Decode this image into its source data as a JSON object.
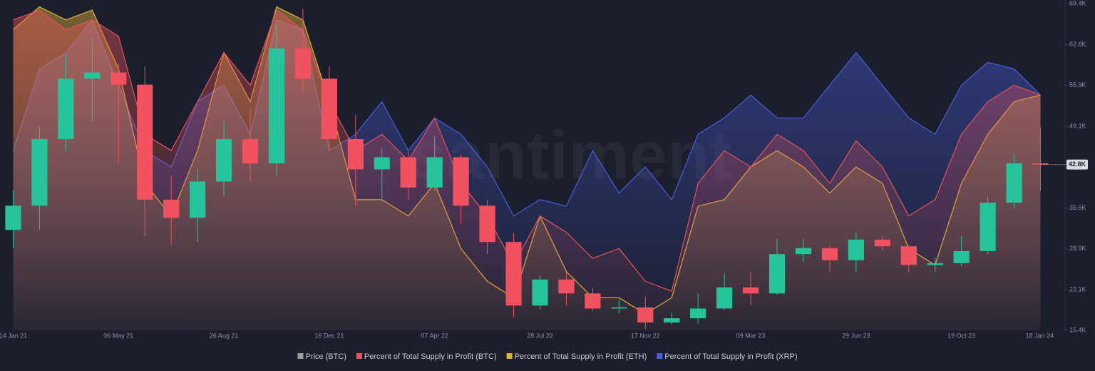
{
  "chart_data": {
    "type": "candlestick",
    "watermark": "santiment",
    "categories": [
      "14 Jan 21",
      null,
      null,
      null,
      "06 May 21",
      null,
      null,
      null,
      "26 Aug 21",
      null,
      null,
      null,
      "16 Dec 21",
      null,
      null,
      null,
      "07 Apr 22",
      null,
      null,
      null,
      "28 Jul 22",
      null,
      null,
      null,
      "17 Nov 22",
      null,
      null,
      null,
      "09 Mar 23",
      null,
      null,
      null,
      "29 Jun 23",
      null,
      null,
      null,
      "19 Oct 23",
      null,
      null,
      "18 Jan 24"
    ],
    "series": [
      {
        "name": "Price (BTC)",
        "color": "#9e9e9e",
        "up_color": "#26c49a",
        "down_color": "#f2525f",
        "open": [
          32000,
          36000,
          47000,
          57000,
          58000,
          56000,
          37000,
          34000,
          40000,
          47000,
          43000,
          62000,
          57000,
          47000,
          42000,
          44000,
          39000,
          44000,
          36000,
          30000,
          19500,
          23800,
          21500,
          19000,
          19200,
          16700,
          17400,
          19000,
          22500,
          21500,
          28000,
          29000,
          27000,
          30400,
          29300,
          26200,
          26500,
          28500,
          36500,
          43000
        ],
        "high": [
          38500,
          49000,
          61000,
          64000,
          59500,
          59000,
          41000,
          42000,
          50000,
          52000,
          66000,
          68500,
          59000,
          51000,
          45500,
          45000,
          47500,
          44500,
          37000,
          31500,
          24500,
          25000,
          22500,
          20500,
          21000,
          18300,
          21500,
          24800,
          25000,
          30500,
          30500,
          29500,
          31500,
          31000,
          29500,
          27500,
          31000,
          37500,
          44500,
          48900
        ],
        "low": [
          29000,
          32000,
          45000,
          50000,
          43000,
          31000,
          29500,
          30000,
          37500,
          40000,
          41000,
          55000,
          45000,
          36000,
          36500,
          37000,
          38500,
          33000,
          28000,
          17600,
          18800,
          19500,
          18600,
          18200,
          15600,
          16400,
          16500,
          18800,
          19600,
          21300,
          26800,
          25000,
          25000,
          28700,
          25000,
          25000,
          26000,
          28000,
          35500,
          38500
        ],
        "close": [
          36000,
          47000,
          57000,
          58000,
          56000,
          37000,
          34000,
          40000,
          47000,
          43000,
          62000,
          57000,
          47000,
          42000,
          44000,
          39000,
          44000,
          36000,
          30000,
          19500,
          23800,
          21500,
          19000,
          19200,
          16700,
          17400,
          19000,
          22500,
          21500,
          28000,
          29000,
          27000,
          30400,
          29300,
          26200,
          26500,
          28500,
          36500,
          43000,
          42800
        ]
      },
      {
        "name": "Percent of Total Supply in Profit (BTC)",
        "color": "#e6535a",
        "axis": "y2",
        "values": [
          95,
          98,
          92,
          95,
          90,
          60,
          55,
          70,
          85,
          75,
          98,
          92,
          70,
          55,
          60,
          52,
          65,
          45,
          35,
          20,
          35,
          30,
          22,
          25,
          15,
          12,
          45,
          55,
          50,
          60,
          55,
          45,
          58,
          50,
          35,
          40,
          60,
          70,
          75,
          72
        ]
      },
      {
        "name": "Percent of Total Supply in Profit (ETH)",
        "color": "#e2b33c",
        "axis": "y2",
        "values": [
          92,
          99,
          95,
          98,
          80,
          45,
          35,
          55,
          85,
          70,
          99,
          95,
          70,
          40,
          40,
          35,
          45,
          25,
          15,
          10,
          35,
          18,
          10,
          10,
          5,
          10,
          38,
          40,
          50,
          55,
          50,
          42,
          50,
          45,
          25,
          20,
          45,
          60,
          70,
          72
        ]
      },
      {
        "name": "Percent of Total Supply in Profit (XRP)",
        "color": "#4a5fe0",
        "axis": "y2",
        "values": [
          55,
          80,
          85,
          95,
          75,
          55,
          50,
          70,
          75,
          60,
          95,
          92,
          55,
          60,
          70,
          55,
          65,
          60,
          50,
          35,
          40,
          38,
          55,
          42,
          50,
          40,
          60,
          65,
          72,
          65,
          65,
          75,
          85,
          75,
          65,
          60,
          75,
          82,
          80,
          72
        ]
      }
    ],
    "ylim": [
      15400,
      69400
    ],
    "yticks": [
      {
        "value": 15400,
        "label": "15.4K"
      },
      {
        "value": 22100,
        "label": "22.1K"
      },
      {
        "value": 28900,
        "label": "28.9K"
      },
      {
        "value": 35600,
        "label": "35.6K"
      },
      {
        "value": 49100,
        "label": "49.1K"
      },
      {
        "value": 55900,
        "label": "55.9K"
      },
      {
        "value": 62600,
        "label": "62.6K"
      },
      {
        "value": 69400,
        "label": "69.4K"
      }
    ],
    "y2lim": [
      0,
      100
    ],
    "last_price": {
      "value": 42800,
      "label": "42.8K"
    },
    "grid": false
  }
}
